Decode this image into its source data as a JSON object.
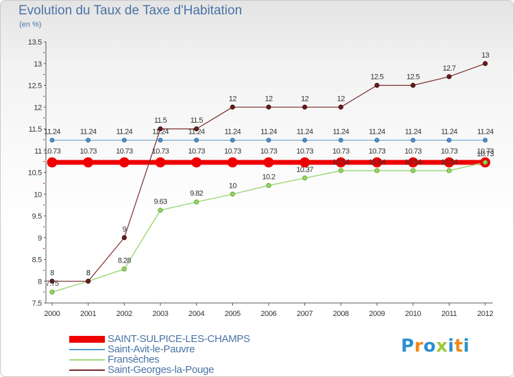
{
  "title": "Evolution du Taux de Taxe d'Habitation",
  "unit_label": "(en %)",
  "logo": {
    "chars": [
      "P",
      "r",
      "o",
      "x",
      "i",
      "t",
      "i"
    ],
    "colors": [
      "#2a8fd0",
      "#f08a1c",
      "#2a8fd0",
      "#9bc93c",
      "#2a8fd0",
      "#f08a1c",
      "#2a8fd0"
    ]
  },
  "chart_data": {
    "type": "line",
    "title": "Evolution du Taux de Taxe d'Habitation",
    "ylabel": "(en %)",
    "xlabel": "",
    "x": [
      "2000",
      "2001",
      "2002",
      "2003",
      "2004",
      "2005",
      "2006",
      "2007",
      "2008",
      "2009",
      "2010",
      "2011",
      "2012"
    ],
    "ylim": [
      7.5,
      13.5
    ],
    "yticks": [
      "7.5",
      "8",
      "8.5",
      "9",
      "9.5",
      "10",
      "10.5",
      "11",
      "11.5",
      "12",
      "12.5",
      "13",
      "13.5"
    ],
    "grid": false,
    "legend_position": "bottom-left",
    "series": [
      {
        "name": "SAINT-SULPICE-LES-CHAMPS",
        "color": "#ee0000",
        "values": [
          10.73,
          10.73,
          10.73,
          10.73,
          10.73,
          10.73,
          10.73,
          10.73,
          10.73,
          10.73,
          10.73,
          10.73,
          10.73
        ],
        "labels": [
          "10.73",
          "10.73",
          "10.73",
          "10.73",
          "10.73",
          "10.73",
          "10.73",
          "10.73",
          "10.73",
          "10.73",
          "10.73",
          "10.73",
          "10.73"
        ]
      },
      {
        "name": "Saint-Avit-le-Pauvre",
        "color": "#5b9bd0",
        "values": [
          11.24,
          11.24,
          11.24,
          11.24,
          11.24,
          11.24,
          11.24,
          11.24,
          11.24,
          11.24,
          11.24,
          11.24,
          11.24
        ],
        "labels": [
          "11.24",
          "11.24",
          "11.24",
          "11.24",
          "11.24",
          "11.24",
          "11.24",
          "11.24",
          "11.24",
          "11.24",
          "11.24",
          "11.24",
          "11.24"
        ]
      },
      {
        "name": "Fransèches",
        "color": "#9fd87a",
        "values": [
          7.75,
          8,
          8.28,
          9.63,
          9.82,
          10,
          10.2,
          10.37,
          10.54,
          10.54,
          10.54,
          10.54,
          10.73
        ],
        "labels": [
          "7.75",
          "8",
          "8.28",
          "9.63",
          "9.82",
          "10",
          "10.2",
          "10.37",
          "10.54",
          "10.54",
          "10.54",
          "10.54",
          "10.73"
        ]
      },
      {
        "name": "Saint-Georges-la-Pouge",
        "color": "#7a2a2a",
        "values": [
          8,
          8,
          9,
          11.5,
          11.5,
          12,
          12,
          12,
          12,
          12.5,
          12.5,
          12.7,
          13
        ],
        "labels": [
          "8",
          "8",
          "9",
          "11.5",
          "11.5",
          "12",
          "12",
          "12",
          "12",
          "12.5",
          "12.5",
          "12.7",
          "13"
        ]
      }
    ]
  }
}
